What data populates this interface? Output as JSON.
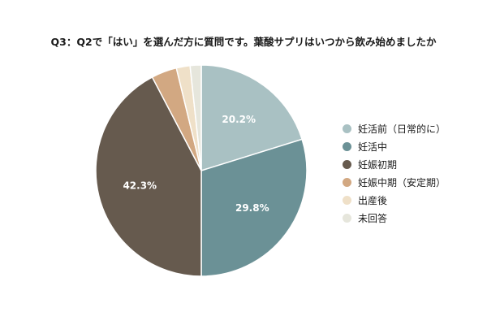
{
  "chart_data": {
    "type": "pie",
    "title": "Q3：Q2で「はい」を選んだ方に質問です。葉酸サプリはいつから飲み始めましたか",
    "categories": [
      "妊活前（日常的に）",
      "妊活中",
      "妊娠初期",
      "妊娠中期（安定期）",
      "出産後",
      "未回答"
    ],
    "values": [
      20.2,
      29.8,
      42.3,
      3.9,
      2.1,
      1.7
    ],
    "data_labels": [
      "20.2%",
      "29.8%",
      "42.3%",
      "",
      "",
      ""
    ],
    "colors": [
      "#a9c1c3",
      "#6b9196",
      "#665a4e",
      "#d2a882",
      "#efe0c8",
      "#e6e6dc"
    ],
    "legend_position": "right",
    "start_angle": "top",
    "direction": "clockwise"
  }
}
